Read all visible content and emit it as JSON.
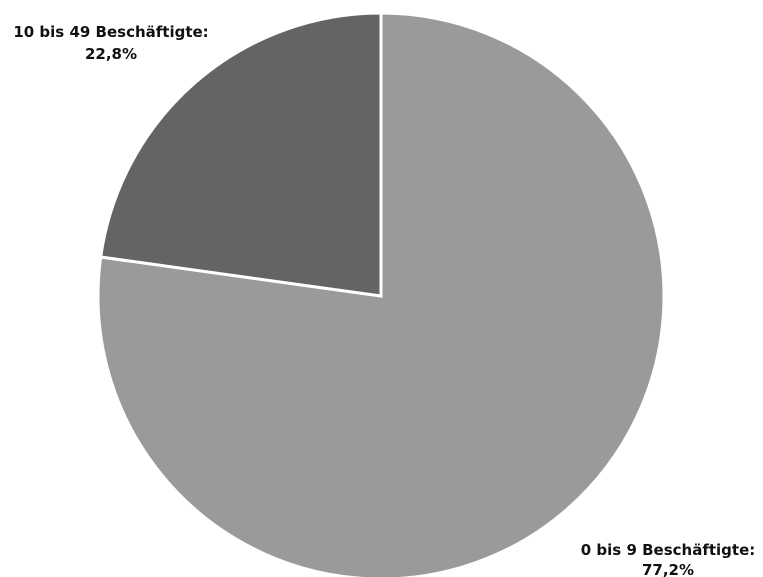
{
  "chart_data": {
    "type": "pie",
    "slices": [
      {
        "label": "0 bis 9 Beschäftigte:",
        "value_label": "77,2%",
        "value": 77.2,
        "color": "#9a9a9a"
      },
      {
        "label": "10 bis 49 Beschäftigte:",
        "value_label": "22,8%",
        "value": 22.8,
        "color": "#646464"
      }
    ],
    "start_angle": "12 o'clock",
    "direction": "clockwise",
    "legend": "none"
  }
}
